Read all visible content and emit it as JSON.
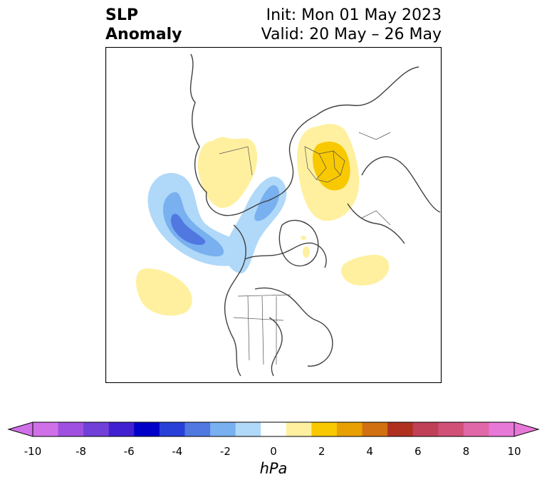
{
  "title": {
    "left_line1": "SLP",
    "left_line2": "Anomaly",
    "right_line1": "Init: Mon 01 May 2023",
    "right_line2": "Valid: 20 May – 26 May"
  },
  "colorbar": {
    "unit": "hPa",
    "tick_labels": [
      "-10",
      "-8",
      "-6",
      "-4",
      "-2",
      "0",
      "2",
      "4",
      "6",
      "8",
      "10"
    ],
    "levels": [
      -11,
      -10,
      -9,
      -8,
      -7,
      -6,
      -5,
      -4,
      -3,
      -2,
      -1,
      1,
      2,
      3,
      4,
      5,
      6,
      7,
      8,
      9,
      10,
      11
    ],
    "colors": [
      "#d070e8",
      "#a050e0",
      "#7040d8",
      "#4020d0",
      "#0000c8",
      "#2840d8",
      "#5078e0",
      "#78b0f0",
      "#b0d8f8",
      "#ffffff",
      "#fff0a0",
      "#f8c800",
      "#e8a000",
      "#d07010",
      "#b03020",
      "#c04058",
      "#d05078",
      "#e068a8",
      "#e878d8"
    ]
  },
  "map": {
    "projection": "north polar stereographic",
    "anomalies": [
      {
        "name": "pacific-low",
        "sign": "negative",
        "peak_hpa": -5
      },
      {
        "name": "hudson-bay-low",
        "sign": "negative",
        "peak_hpa": -2
      },
      {
        "name": "north-pacific-high",
        "sign": "positive",
        "peak_hpa": 2
      },
      {
        "name": "east-siberia-high",
        "sign": "positive",
        "peak_hpa": 2
      },
      {
        "name": "europe-high",
        "sign": "positive",
        "peak_hpa": 3
      },
      {
        "name": "north-atlantic-high",
        "sign": "positive",
        "peak_hpa": 2
      }
    ]
  }
}
